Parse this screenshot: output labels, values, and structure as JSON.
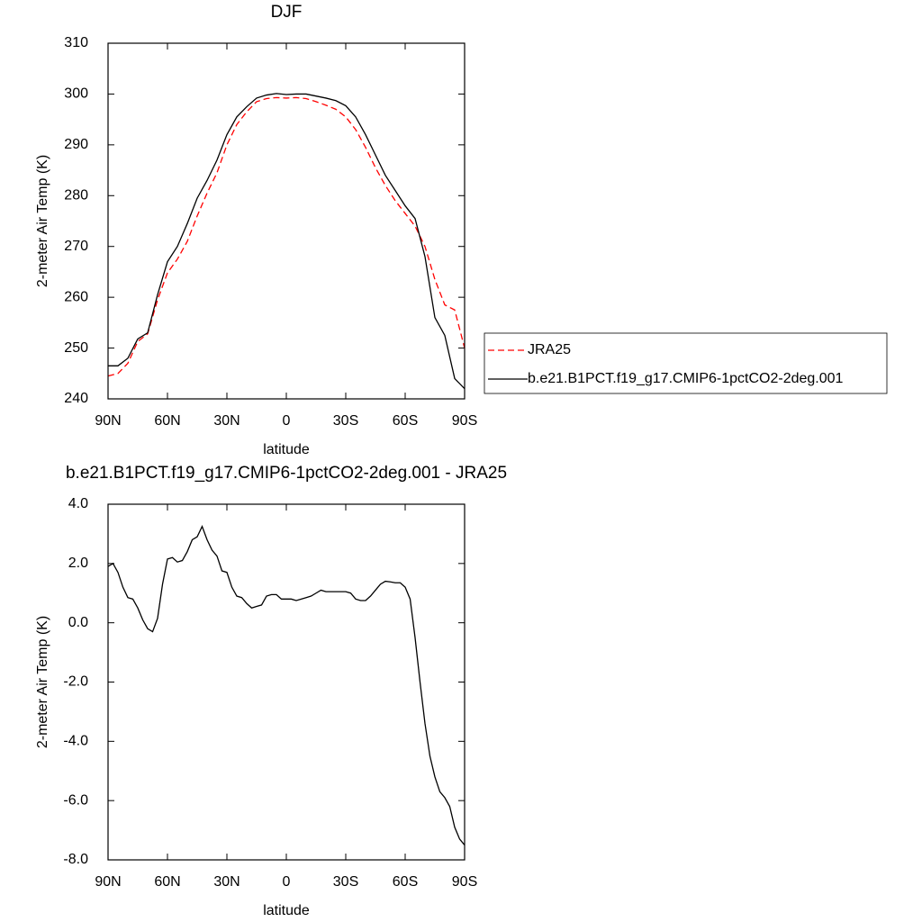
{
  "chart_data": [
    {
      "type": "line",
      "title": "DJF",
      "x_label": "latitude",
      "y_label": "2-meter Air Temp (K)",
      "x": [
        90,
        85,
        80,
        75,
        70,
        65,
        60,
        55,
        50,
        45,
        40,
        35,
        30,
        25,
        20,
        15,
        10,
        5,
        0,
        -5,
        -10,
        -15,
        -20,
        -25,
        -30,
        -35,
        -40,
        -45,
        -50,
        -55,
        -60,
        -65,
        -70,
        -75,
        -80,
        -85,
        -90
      ],
      "series": [
        {
          "name": "JRA25",
          "color": "#ff0000",
          "line_style": "dashed",
          "values": [
            244.5,
            245,
            247,
            251.3,
            252.8,
            259.5,
            264.8,
            267.5,
            271,
            276,
            280.5,
            284.5,
            290,
            294,
            296.5,
            298.5,
            299.1,
            299.3,
            299.2,
            299.3,
            299.1,
            298.5,
            297.8,
            297,
            295.5,
            293,
            289.5,
            285.5,
            282,
            279,
            276.5,
            274,
            270,
            263.5,
            258.5,
            257.5,
            250
          ]
        },
        {
          "name": "b.e21.B1PCT.f19_g17.CMIP6-1pctCO2-2deg.001",
          "color": "#000000",
          "line_style": "solid",
          "values": [
            246.5,
            246.5,
            248,
            251.8,
            253,
            260.5,
            267,
            270,
            274.5,
            279.5,
            283,
            287,
            292,
            295.5,
            297.5,
            299.2,
            299.8,
            300.1,
            299.9,
            300,
            300,
            299.6,
            299.2,
            298.7,
            297.7,
            295.5,
            292,
            288,
            284,
            281,
            278,
            275.5,
            268,
            256,
            252.5,
            244,
            242
          ]
        }
      ],
      "xlim": [
        90,
        -90
      ],
      "xticks": [
        {
          "value": 90,
          "label": "90N"
        },
        {
          "value": 60,
          "label": "60N"
        },
        {
          "value": 30,
          "label": "30N"
        },
        0,
        {
          "value": -30,
          "label": "30S"
        },
        {
          "value": -60,
          "label": "60S"
        },
        {
          "value": -90,
          "label": "90S"
        }
      ],
      "ylim": [
        240,
        310
      ],
      "yticks": [
        240,
        250,
        260,
        270,
        280,
        290,
        300,
        310
      ],
      "legend": "right"
    },
    {
      "type": "line",
      "title": "b.e21.B1PCT.f19_g17.CMIP6-1pctCO2-2deg.001 - JRA25",
      "x_label": "latitude",
      "y_label": "2-meter Air Temp (K)",
      "x": [
        90,
        87.5,
        85,
        82.5,
        80,
        77.5,
        75,
        72.5,
        70,
        67.5,
        65,
        62.5,
        60,
        57.5,
        55,
        52.5,
        50,
        47.5,
        45,
        42.5,
        40,
        37.5,
        35,
        32.5,
        30,
        27.5,
        25,
        22.5,
        20,
        17.5,
        15,
        12.5,
        10,
        7.5,
        5,
        2.5,
        0,
        -2.5,
        -5,
        -7.5,
        -10,
        -12.5,
        -15,
        -17.5,
        -20,
        -22.5,
        -25,
        -27.5,
        -30,
        -32.5,
        -35,
        -37.5,
        -40,
        -42.5,
        -45,
        -47.5,
        -50,
        -52.5,
        -55,
        -57.5,
        -60,
        -62.5,
        -65,
        -67.5,
        -70,
        -72.5,
        -75,
        -77.5,
        -80,
        -82.5,
        -85,
        -87.5,
        -90
      ],
      "values": [
        1.9,
        2.0,
        1.7,
        1.2,
        0.85,
        0.8,
        0.5,
        0.1,
        -0.2,
        -0.3,
        0.15,
        1.3,
        2.15,
        2.2,
        2.05,
        2.1,
        2.4,
        2.8,
        2.9,
        3.25,
        2.8,
        2.45,
        2.25,
        1.75,
        1.7,
        1.2,
        0.9,
        0.85,
        0.65,
        0.5,
        0.55,
        0.6,
        0.9,
        0.95,
        0.95,
        0.8,
        0.8,
        0.8,
        0.75,
        0.8,
        0.85,
        0.9,
        1.0,
        1.1,
        1.05,
        1.05,
        1.05,
        1.05,
        1.05,
        1.0,
        0.8,
        0.75,
        0.75,
        0.9,
        1.1,
        1.3,
        1.4,
        1.38,
        1.35,
        1.35,
        1.2,
        0.8,
        -0.5,
        -2.0,
        -3.4,
        -4.5,
        -5.2,
        -5.7,
        -5.9,
        -6.2,
        -6.9,
        -7.3,
        -7.5
      ],
      "color": "#000000",
      "xlim": [
        90,
        -90
      ],
      "xticks": [
        {
          "value": 90,
          "label": "90N"
        },
        {
          "value": 60,
          "label": "60N"
        },
        {
          "value": 30,
          "label": "30N"
        },
        0,
        {
          "value": -30,
          "label": "30S"
        },
        {
          "value": -60,
          "label": "60S"
        },
        {
          "value": -90,
          "label": "90S"
        }
      ],
      "ylim": [
        -8,
        4
      ],
      "yticks": [
        {
          "value": -8,
          "label": "-8.0"
        },
        {
          "value": -6,
          "label": "-6.0"
        },
        {
          "value": -4,
          "label": "-4.0"
        },
        {
          "value": -2,
          "label": "-2.0"
        },
        {
          "value": 0,
          "label": "0.0"
        },
        {
          "value": 2,
          "label": "2.0"
        },
        {
          "value": 4,
          "label": "4.0"
        }
      ]
    }
  ]
}
